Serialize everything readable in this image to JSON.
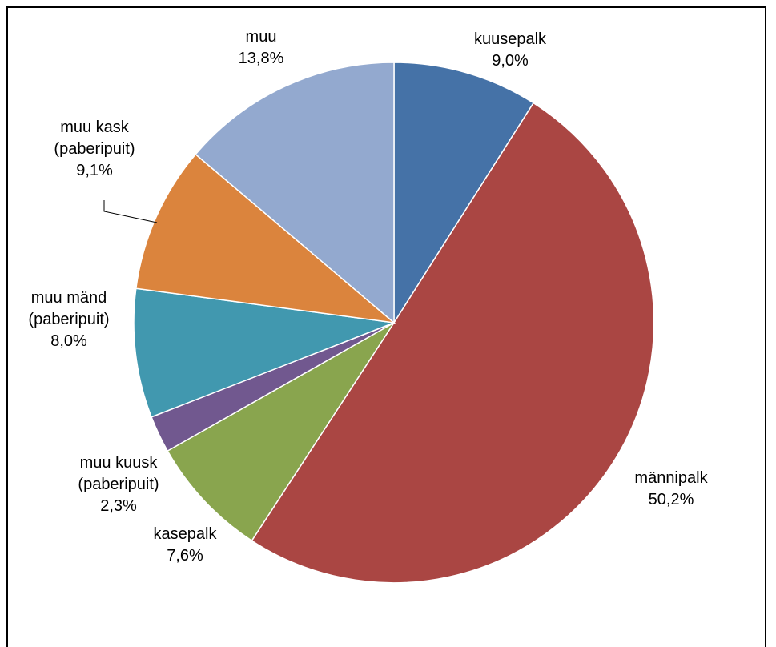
{
  "chart_data": {
    "type": "pie",
    "title": "",
    "slices": [
      {
        "label": "kuusepalk",
        "value": 9.0,
        "display": "9,0%",
        "color": "#4572A7"
      },
      {
        "label": "männipalk",
        "value": 50.2,
        "display": "50,2%",
        "color": "#AA4643"
      },
      {
        "label": "kasepalk",
        "value": 7.6,
        "display": "7,6%",
        "color": "#89A54E"
      },
      {
        "label": "muu kuusk (paberipuit)",
        "label_lines": [
          "muu kuusk",
          "(paberipuit)"
        ],
        "value": 2.3,
        "display": "2,3%",
        "color": "#71588F"
      },
      {
        "label": "muu mänd (paberipuit)",
        "label_lines": [
          "muu mänd",
          "(paberipuit)"
        ],
        "value": 8.0,
        "display": "8,0%",
        "color": "#4198AF"
      },
      {
        "label": "muu kask (paberipuit)",
        "label_lines": [
          "muu kask",
          "(paberipuit)"
        ],
        "value": 9.1,
        "display": "9,1%",
        "color": "#DB843D"
      },
      {
        "label": "muu",
        "value": 13.8,
        "display": "13,8%",
        "color": "#93A9CF"
      }
    ],
    "start_angle": "12 o'clock",
    "direction": "clockwise",
    "legend": "none",
    "data_labels": "category name and percentage"
  }
}
